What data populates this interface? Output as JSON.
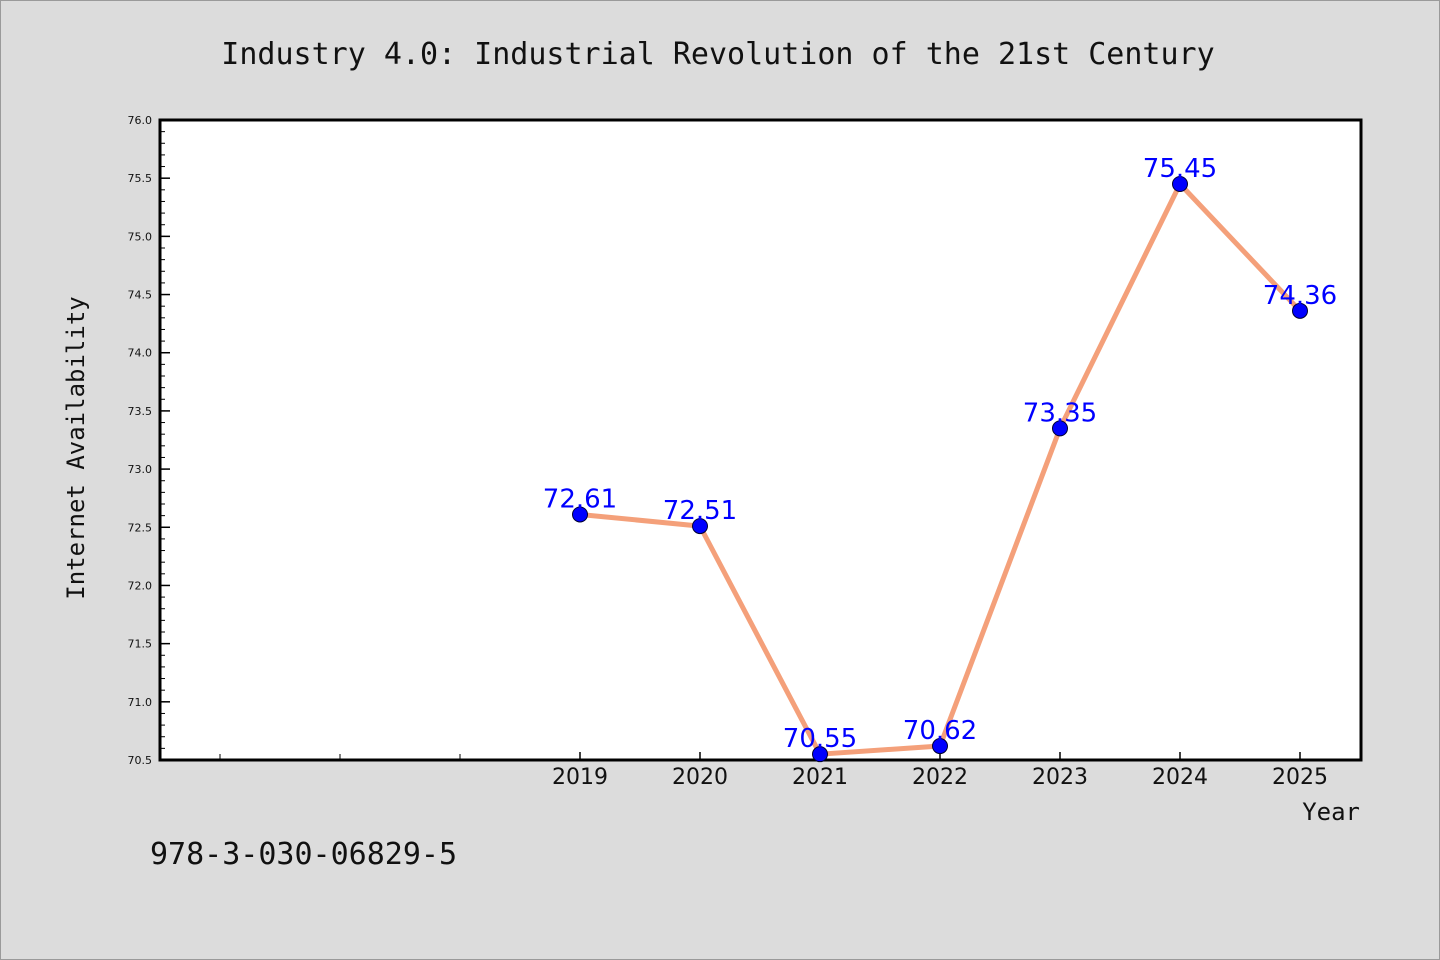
{
  "chart_data": {
    "type": "line",
    "title": "Industry 4.0: Industrial Revolution of the 21st Century",
    "xlabel": "Year",
    "ylabel": "Internet Availability",
    "x": [
      "2019",
      "2020",
      "2021",
      "2022",
      "2023",
      "2024",
      "2025"
    ],
    "series": [
      {
        "values": [
          72.61,
          72.51,
          70.55,
          70.62,
          73.35,
          75.45,
          74.36
        ]
      }
    ],
    "data_labels": [
      "72.61",
      "72.51",
      "70.55",
      "70.62",
      "73.35",
      "75.45",
      "74.36"
    ],
    "ylim": [
      70.5,
      76.0
    ],
    "yticks": [
      "70.5",
      "71.0",
      "71.5",
      "72.0",
      "72.5",
      "73.0",
      "73.5",
      "74.0",
      "74.5",
      "75.0",
      "75.5",
      "76.0"
    ],
    "grid": false,
    "legend": "none",
    "colors": {
      "line": "#f4a07a",
      "marker": "#0000ff",
      "label": "#0000ff",
      "background": "#dcdcdc",
      "plot_background": "#ffffff"
    }
  },
  "annotation": "978-3-030-06829-5"
}
